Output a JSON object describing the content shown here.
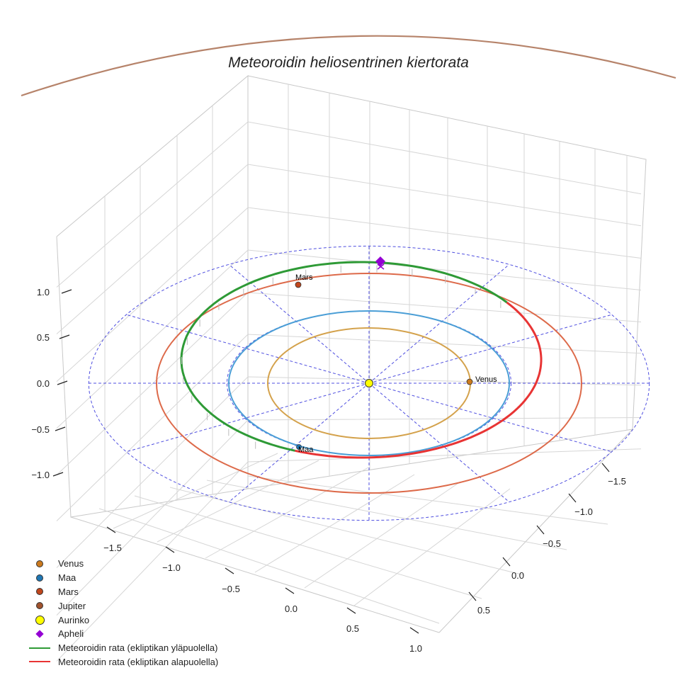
{
  "chart_data": {
    "type": "line",
    "title": "Meteoroidin heliosentrinen kiertorata",
    "axes": {
      "x": {
        "ticks": [
          -1.5,
          -1.0,
          -0.5,
          0.0,
          0.5,
          1.0
        ],
        "tick_labels": [
          "−1.5",
          "−1.0",
          "−0.5",
          "0.0",
          "0.5",
          "1.0"
        ]
      },
      "y": {
        "ticks": [
          -1.5,
          -1.0,
          -0.5,
          0.0,
          0.5
        ],
        "tick_labels": [
          "−1.5",
          "−1.0",
          "−0.5",
          "0.0",
          "0.5"
        ]
      },
      "z": {
        "ticks": [
          -1.0,
          -0.5,
          0.0,
          0.5,
          1.0
        ],
        "tick_labels": [
          "−1.0",
          "−0.5",
          "0.0",
          "0.5",
          "1.0"
        ]
      },
      "grid": true
    },
    "series": [
      {
        "name": "Venus orbit",
        "radius_au": 0.72,
        "color": "#d4a24c"
      },
      {
        "name": "Maa orbit",
        "radius_au": 1.0,
        "color": "#4a9ed6"
      },
      {
        "name": "Mars orbit",
        "radius_au": 1.52,
        "color": "#dd6a4a"
      },
      {
        "name": "Jupiter orbit",
        "radius_au": 5.2,
        "color": "#b6836a"
      },
      {
        "name": "Meteoroidin rata (ekliptikan yläpuolella)",
        "color": "#2e9a36"
      },
      {
        "name": "Meteoroidin rata (ekliptikan alapuolella)",
        "color": "#e83434"
      }
    ],
    "markers": [
      {
        "name": "Venus",
        "label": "Venus",
        "color": "#cc7a1e"
      },
      {
        "name": "Maa",
        "label": "Maa",
        "color": "#1f77b4"
      },
      {
        "name": "Mars",
        "label": "Mars",
        "color": "#c0461c"
      },
      {
        "name": "Aurinko",
        "color": "#ffff00"
      },
      {
        "name": "Apheli",
        "color": "#9400d3"
      }
    ],
    "legend": {
      "position": "bottom-left",
      "entries": [
        {
          "label": "Venus",
          "kind": "dot",
          "color": "#cc7a1e"
        },
        {
          "label": "Maa",
          "kind": "dot",
          "color": "#1f77b4"
        },
        {
          "label": "Mars",
          "kind": "dot",
          "color": "#c0461c"
        },
        {
          "label": "Jupiter",
          "kind": "dot",
          "color": "#a0522d"
        },
        {
          "label": "Aurinko",
          "kind": "sun",
          "color": "#ffff00"
        },
        {
          "label": "Apheli",
          "kind": "diamond",
          "color": "#9400d3"
        },
        {
          "label": "Meteoroidin rata (ekliptikan yläpuolella)",
          "kind": "line",
          "color": "#2e9a36"
        },
        {
          "label": "Meteoroidin rata (ekliptikan alapuolella)",
          "kind": "line",
          "color": "#e83434"
        }
      ]
    }
  }
}
